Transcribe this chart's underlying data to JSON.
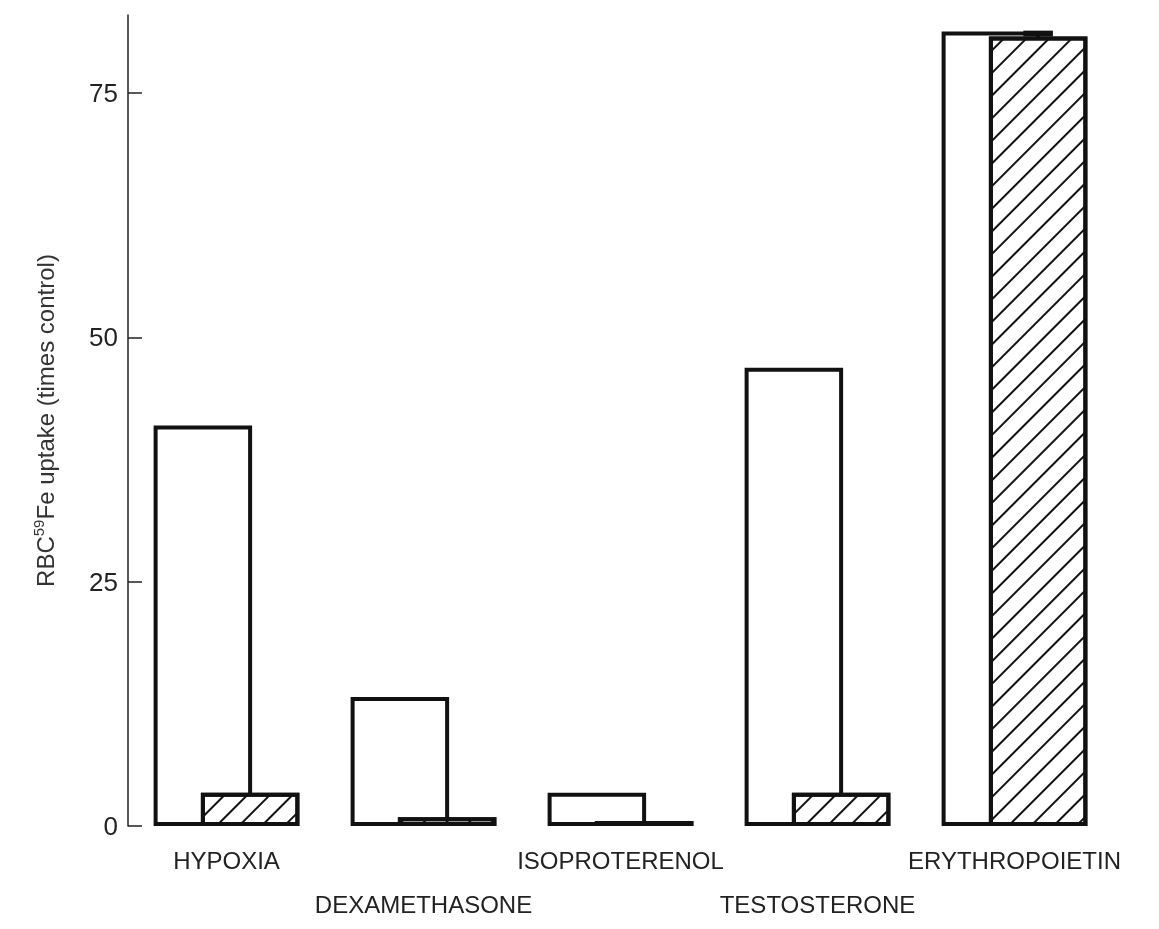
{
  "chart_data": {
    "type": "bar",
    "ylabel": "RBC$^{59}$Fe uptake (times control)",
    "categories": [
      "HYPOXIA",
      "DEXAMETHASONE",
      "ISOPROTERENOL",
      "TESTOSTERONE",
      "ERYTHROPOIETIN"
    ],
    "series": [
      {
        "color": "#ffffff",
        "values": [
          41.0,
          13.2,
          3.4,
          46.9,
          81.3
        ]
      },
      {
        "color": "#ffffff",
        "values": [
          3.4,
          0.9,
          0.5,
          3.4,
          80.8
        ],
        "errors": [
          null,
          null,
          null,
          null,
          [
            80.8,
            81.4
          ]
        ]
      }
    ],
    "ylim": [
      0,
      83
    ],
    "yticks": [
      0,
      25,
      50,
      75
    ],
    "grid": false
  }
}
